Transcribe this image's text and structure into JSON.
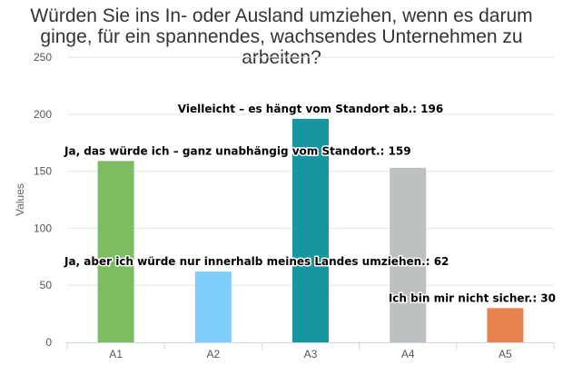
{
  "chart_data": {
    "type": "bar",
    "title": "Würden Sie ins In- oder Ausland umziehen, wenn es darum ginge, für ein spannendes, wachsendes Unternehmen zu arbeiten?",
    "xlabel": "",
    "ylabel": "Values",
    "categories": [
      "A1",
      "A2",
      "A3",
      "A4",
      "A5"
    ],
    "values": [
      159,
      62,
      196,
      153,
      30
    ],
    "colors": [
      "#7ebc62",
      "#7fcdfb",
      "#17969f",
      "#bcc1bd",
      "#e8834f"
    ],
    "data_labels": [
      "Ja, das würde ich – ganz unabhängig vom Standort.: 159",
      "Ja, aber ich würde nur innerhalb meines Landes umziehen.: 62",
      "Vielleicht – es hängt vom Standort ab.: 196",
      "",
      "Ich bin mir nicht sicher.: 30"
    ],
    "ylim": [
      0,
      250
    ],
    "yticks": [
      0,
      50,
      100,
      150,
      200,
      250
    ],
    "grid": true,
    "legend": "none"
  }
}
